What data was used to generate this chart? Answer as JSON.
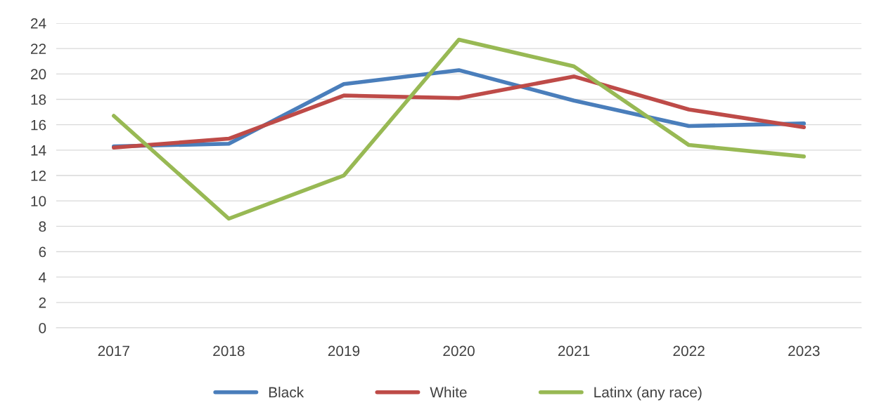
{
  "chart_data": {
    "type": "line",
    "categories": [
      "2017",
      "2018",
      "2019",
      "2020",
      "2021",
      "2022",
      "2023"
    ],
    "series": [
      {
        "name": "Black",
        "color": "#4a7ebb",
        "values": [
          14.3,
          14.5,
          19.2,
          20.3,
          17.9,
          15.9,
          16.1
        ]
      },
      {
        "name": "White",
        "color": "#be4b48",
        "values": [
          14.2,
          14.9,
          18.3,
          18.1,
          19.8,
          17.2,
          15.8
        ]
      },
      {
        "name": "Latinx (any race)",
        "color": "#98b954",
        "values": [
          16.7,
          8.6,
          12.0,
          22.7,
          20.6,
          14.4,
          13.5
        ]
      }
    ],
    "ylim": [
      0,
      24
    ],
    "yticks": [
      0,
      2,
      4,
      6,
      8,
      10,
      12,
      14,
      16,
      18,
      20,
      22,
      24
    ],
    "grid": "y",
    "legend": "bottom",
    "marker": "none",
    "line_style": "solid"
  }
}
